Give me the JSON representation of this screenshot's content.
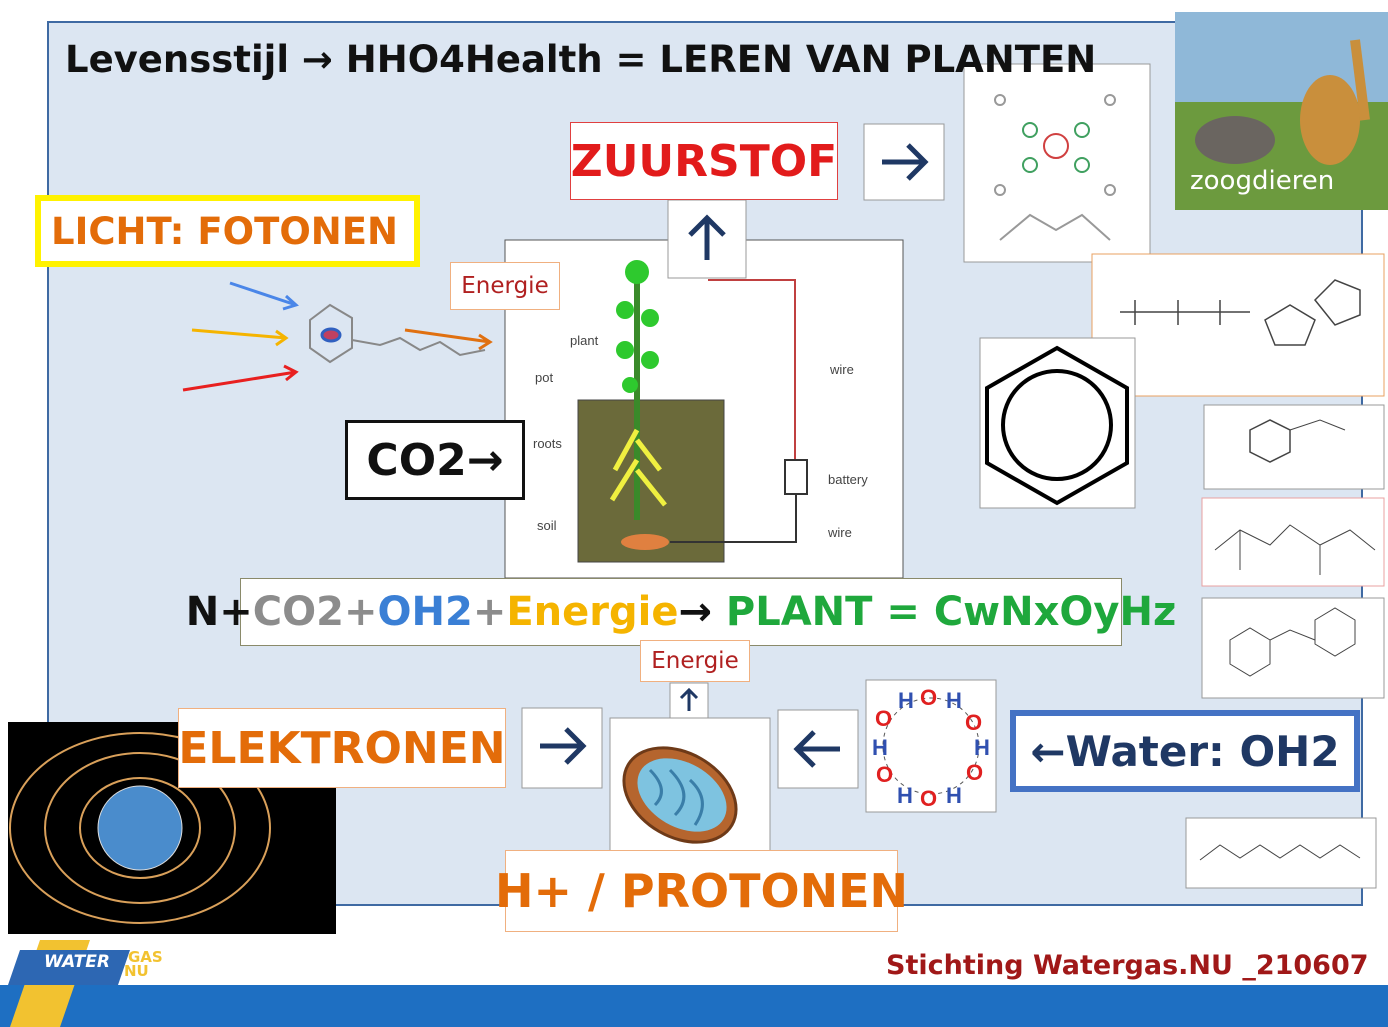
{
  "title": "Levensstijl → HHO4Health = LEREN VAN PLANTEN",
  "boxes": {
    "zuurstof": "ZUURSTOF",
    "licht": "LICHT: FOTONEN",
    "energie_top": "Energie",
    "co2": "CO2→",
    "energie_bottom": "Energie",
    "elektronen": "ELEKTRONEN",
    "protonen": "H+ / PROTONEN",
    "water": "←Water: OH2"
  },
  "equation": [
    {
      "text": "N+",
      "color": "#111111"
    },
    {
      "text": "CO2",
      "color": "#8c8c8c"
    },
    {
      "text": "+",
      "color": "#8c8c8c"
    },
    {
      "text": "OH2",
      "color": "#3a7fd5"
    },
    {
      "text": "+",
      "color": "#8c8c8c"
    },
    {
      "text": "Energie",
      "color": "#f5b400"
    },
    {
      "text": "→ ",
      "color": "#111111"
    },
    {
      "text": "PLANT = CwNxOyHz",
      "color": "#1fa83c"
    }
  ],
  "plant_labels": [
    "plant",
    "pot",
    "roots",
    "soil",
    "wire",
    "battery",
    "wire"
  ],
  "image_caption": "zoogdieren",
  "logo": {
    "top": "WATER",
    "mid": "GAS",
    "bottom": "NU"
  },
  "footer": "Stichting Watergas.NU _210607"
}
